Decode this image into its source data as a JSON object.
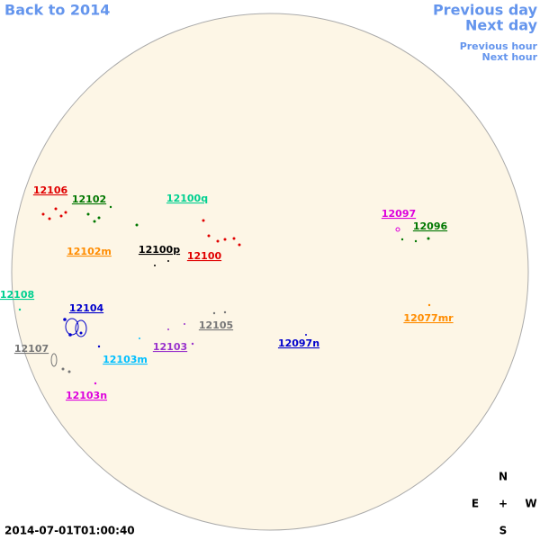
{
  "nav": {
    "back": "Back to 2014",
    "previous_day": "Previous day",
    "next_day": "Next day",
    "previous_hour": "Previous hour",
    "next_hour": "Next hour"
  },
  "regions": [
    "12106",
    "12102",
    "12100q",
    "12097",
    "12096",
    "12102m",
    "12100p",
    "12100",
    "12108",
    "12104",
    "12105",
    "12077mr",
    "12103",
    "12097n",
    "12107",
    "12103m",
    "12103n"
  ],
  "timestamp": "2014-07-01T01:00:40",
  "compass": {
    "north": "N",
    "east": "E",
    "center": "+",
    "west": "W",
    "south": "S"
  }
}
